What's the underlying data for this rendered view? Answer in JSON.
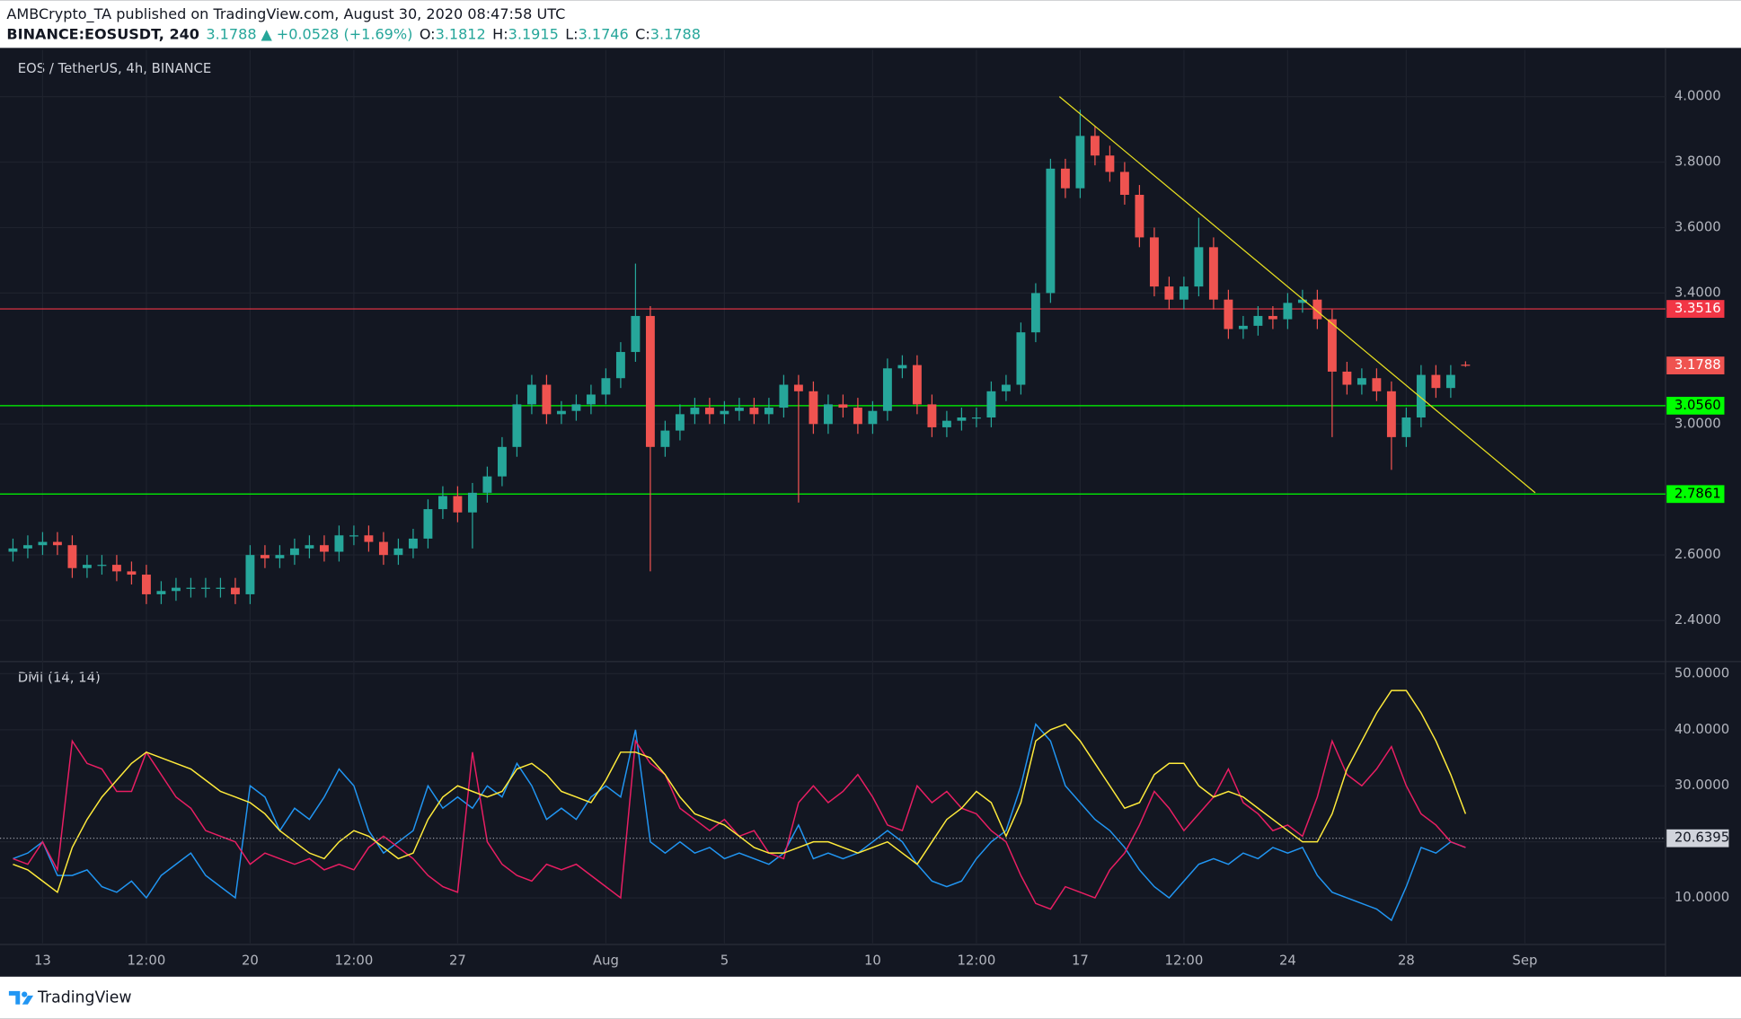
{
  "header": {
    "publisher": "AMBCrypto_TA published on TradingView.com, August 30, 2020 08:47:58 UTC",
    "symbol": "BINANCE:EOSUSDT, 240",
    "change": "+0.0528 (+1.69%)",
    "ohlc_labels": [
      "O:",
      "H:",
      "L:",
      "C:"
    ]
  },
  "footer": {
    "brand": "TradingView"
  },
  "chart_data": [
    {
      "type": "candlestick",
      "title": "EOS / TetherUS, 4h, BINANCE",
      "categories": [
        null,
        null,
        "13",
        null,
        null,
        null,
        null,
        null,
        null,
        "12:00",
        null,
        null,
        null,
        null,
        null,
        null,
        "20",
        null,
        null,
        null,
        null,
        null,
        null,
        "12:00",
        null,
        null,
        null,
        null,
        null,
        null,
        "27",
        null,
        null,
        null,
        null,
        null,
        null,
        null,
        null,
        null,
        "Aug",
        null,
        null,
        null,
        null,
        null,
        null,
        null,
        "5",
        null,
        null,
        null,
        null,
        null,
        null,
        null,
        null,
        null,
        "10",
        null,
        null,
        null,
        null,
        null,
        null,
        "12:00",
        null,
        null,
        null,
        null,
        null,
        null,
        "17",
        null,
        null,
        null,
        null,
        null,
        null,
        "12:00",
        null,
        null,
        null,
        null,
        null,
        null,
        "24",
        null,
        null,
        null,
        null,
        null,
        null,
        null,
        "28",
        null,
        null,
        null,
        null,
        null,
        null,
        null,
        "Sep"
      ],
      "open": [
        2.61,
        2.62,
        2.63,
        2.64,
        2.63,
        2.56,
        2.57,
        2.57,
        2.55,
        2.54,
        2.48,
        2.49,
        2.5,
        2.5,
        2.5,
        2.5,
        2.48,
        2.6,
        2.59,
        2.6,
        2.62,
        2.63,
        2.61,
        2.66,
        2.66,
        2.64,
        2.6,
        2.62,
        2.65,
        2.74,
        2.78,
        2.73,
        2.79,
        2.84,
        2.93,
        3.06,
        3.12,
        3.03,
        3.04,
        3.06,
        3.09,
        3.14,
        3.22,
        3.33,
        2.93,
        2.98,
        3.03,
        3.05,
        3.03,
        3.04,
        3.05,
        3.03,
        3.05,
        3.12,
        3.1,
        3.0,
        3.06,
        3.05,
        3.0,
        3.04,
        3.17,
        3.18,
        3.06,
        2.99,
        3.01,
        3.02,
        3.02,
        3.1,
        3.12,
        3.28,
        3.4,
        3.78,
        3.72,
        3.88,
        3.82,
        3.77,
        3.7,
        3.57,
        3.42,
        3.38,
        3.42,
        3.54,
        3.38,
        3.29,
        3.3,
        3.33,
        3.32,
        3.37,
        3.38,
        3.32,
        3.16,
        3.12,
        3.14,
        3.1,
        2.96,
        3.02,
        3.15,
        3.11,
        3.1812,
        null,
        null,
        null,
        null
      ],
      "high": [
        2.65,
        2.66,
        2.67,
        2.67,
        2.66,
        2.6,
        2.6,
        2.6,
        2.58,
        2.57,
        2.52,
        2.53,
        2.53,
        2.53,
        2.53,
        2.53,
        2.63,
        2.63,
        2.63,
        2.65,
        2.66,
        2.66,
        2.69,
        2.69,
        2.69,
        2.67,
        2.65,
        2.68,
        2.77,
        2.81,
        2.81,
        2.82,
        2.87,
        2.96,
        3.09,
        3.15,
        3.15,
        3.07,
        3.09,
        3.12,
        3.17,
        3.25,
        3.49,
        3.36,
        3.01,
        3.06,
        3.08,
        3.08,
        3.07,
        3.08,
        3.08,
        3.08,
        3.15,
        3.15,
        3.13,
        3.09,
        3.09,
        3.08,
        3.07,
        3.2,
        3.21,
        3.21,
        3.09,
        3.04,
        3.05,
        3.05,
        3.13,
        3.15,
        3.31,
        3.43,
        3.81,
        3.81,
        3.96,
        3.91,
        3.85,
        3.8,
        3.73,
        3.6,
        3.45,
        3.45,
        3.63,
        3.57,
        3.41,
        3.33,
        3.36,
        3.36,
        3.4,
        3.41,
        3.41,
        3.35,
        3.19,
        3.17,
        3.17,
        3.13,
        3.05,
        3.18,
        3.18,
        3.18,
        3.1915,
        null,
        null,
        null,
        null
      ],
      "low": [
        2.58,
        2.59,
        2.6,
        2.6,
        2.53,
        2.53,
        2.54,
        2.52,
        2.51,
        2.45,
        2.45,
        2.46,
        2.47,
        2.47,
        2.47,
        2.45,
        2.45,
        2.56,
        2.56,
        2.57,
        2.59,
        2.58,
        2.58,
        2.63,
        2.61,
        2.57,
        2.57,
        2.59,
        2.62,
        2.71,
        2.7,
        2.62,
        2.76,
        2.81,
        2.9,
        3.03,
        3.0,
        3.0,
        3.01,
        3.03,
        3.06,
        3.11,
        3.19,
        2.55,
        2.9,
        2.95,
        3.0,
        3.0,
        3.0,
        3.01,
        3.0,
        3.0,
        3.02,
        2.76,
        2.97,
        2.97,
        3.02,
        2.97,
        2.97,
        3.01,
        3.14,
        3.03,
        2.96,
        2.96,
        2.98,
        2.99,
        2.99,
        3.07,
        3.09,
        3.25,
        3.37,
        3.69,
        3.69,
        3.79,
        3.74,
        3.67,
        3.54,
        3.39,
        3.35,
        3.35,
        3.39,
        3.35,
        3.26,
        3.26,
        3.27,
        3.29,
        3.29,
        3.34,
        3.29,
        2.96,
        3.09,
        3.09,
        3.07,
        2.86,
        2.93,
        2.99,
        3.08,
        3.08,
        3.1746,
        null,
        null,
        null,
        null
      ],
      "close": [
        2.62,
        2.63,
        2.64,
        2.63,
        2.56,
        2.57,
        2.57,
        2.55,
        2.54,
        2.48,
        2.49,
        2.5,
        2.5,
        2.5,
        2.5,
        2.48,
        2.6,
        2.59,
        2.6,
        2.62,
        2.63,
        2.61,
        2.66,
        2.66,
        2.64,
        2.6,
        2.62,
        2.65,
        2.74,
        2.78,
        2.73,
        2.79,
        2.84,
        2.93,
        3.06,
        3.12,
        3.03,
        3.04,
        3.06,
        3.09,
        3.14,
        3.22,
        3.33,
        2.93,
        2.98,
        3.03,
        3.05,
        3.03,
        3.04,
        3.05,
        3.03,
        3.05,
        3.12,
        3.1,
        3.0,
        3.06,
        3.05,
        3.0,
        3.04,
        3.17,
        3.18,
        3.06,
        2.99,
        3.01,
        3.02,
        3.02,
        3.1,
        3.12,
        3.28,
        3.4,
        3.78,
        3.72,
        3.88,
        3.82,
        3.77,
        3.7,
        3.57,
        3.42,
        3.38,
        3.42,
        3.54,
        3.38,
        3.29,
        3.3,
        3.33,
        3.32,
        3.37,
        3.38,
        3.32,
        3.16,
        3.12,
        3.14,
        3.1,
        2.96,
        3.02,
        3.15,
        3.11,
        3.15,
        3.1788,
        null,
        null,
        null,
        null
      ],
      "up_color": "#26a69a",
      "down_color": "#ef5350",
      "ylim": [
        2.278,
        4.142
      ],
      "yticks": [
        {
          "value": 2.4,
          "label": "2.4000"
        },
        {
          "value": 2.6,
          "label": "2.6000"
        },
        {
          "value": 3.0,
          "label": "3.0000"
        },
        {
          "value": 3.4,
          "label": "3.4000"
        },
        {
          "value": 3.6,
          "label": "3.6000"
        },
        {
          "value": 3.8,
          "label": "3.8000"
        },
        {
          "value": 4.0,
          "label": "4.0000"
        }
      ],
      "grid": true,
      "levels": [
        {
          "value": 3.3516,
          "label": "3.3516",
          "color": "#f23645"
        },
        {
          "value": 3.056,
          "label": "3.0560",
          "color": "#00ff00"
        },
        {
          "value": 2.7861,
          "label": "2.7861",
          "color": "#00ff00"
        }
      ],
      "trendline": {
        "x": [
          70.6,
          102.7
        ],
        "y": [
          4.0,
          2.79
        ],
        "color": "#e8e020"
      }
    },
    {
      "type": "line",
      "title": "DMI (14, 14)",
      "series": [
        {
          "color": "#2196f3",
          "values": [
            17,
            18,
            20,
            14,
            14,
            15,
            12,
            11,
            13,
            10,
            14,
            16,
            18,
            14,
            12,
            10,
            30,
            28,
            22,
            26,
            24,
            28,
            33,
            30,
            22,
            18,
            20,
            22,
            30,
            26,
            28,
            26,
            30,
            28,
            34,
            30,
            24,
            26,
            24,
            28,
            30,
            28,
            40,
            20,
            18,
            20,
            18,
            19,
            17,
            18,
            17,
            16,
            18,
            23,
            17,
            18,
            17,
            18,
            20,
            22,
            20,
            16,
            13,
            12,
            13,
            17,
            20,
            22,
            30,
            41,
            38,
            30,
            27,
            24,
            22,
            19,
            15,
            12,
            10,
            13,
            16,
            17,
            16,
            18,
            17,
            19,
            18,
            19,
            14,
            11,
            10,
            9,
            8,
            6,
            12,
            19,
            18,
            20,
            19,
            null,
            null,
            null,
            null
          ]
        },
        {
          "color": "#e91e63",
          "values": [
            17,
            16,
            20,
            15,
            38,
            34,
            33,
            29,
            29,
            36,
            32,
            28,
            26,
            22,
            21,
            20,
            16,
            18,
            17,
            16,
            17,
            15,
            16,
            15,
            19,
            21,
            19,
            17,
            14,
            12,
            11,
            36,
            20,
            16,
            14,
            13,
            16,
            15,
            16,
            14,
            12,
            10,
            38,
            34,
            32,
            26,
            24,
            22,
            24,
            21,
            22,
            18,
            17,
            27,
            30,
            27,
            29,
            32,
            28,
            23,
            22,
            30,
            27,
            29,
            26,
            25,
            22,
            20,
            14,
            9,
            8,
            12,
            11,
            10,
            15,
            18,
            23,
            29,
            26,
            22,
            25,
            28,
            33,
            27,
            25,
            22,
            23,
            21,
            28,
            38,
            32,
            30,
            33,
            37,
            30,
            25,
            23,
            20,
            19,
            null,
            null,
            null,
            null
          ]
        },
        {
          "color": "#ffeb3b",
          "values": [
            16,
            15,
            13,
            11,
            19,
            24,
            28,
            31,
            34,
            36,
            35,
            34,
            33,
            31,
            29,
            28,
            27,
            25,
            22,
            20,
            18,
            17,
            20,
            22,
            21,
            19,
            17,
            18,
            24,
            28,
            30,
            29,
            28,
            29,
            33,
            34,
            32,
            29,
            28,
            27,
            31,
            36,
            36,
            35,
            32,
            28,
            25,
            24,
            23,
            21,
            19,
            18,
            18,
            19,
            20,
            20,
            19,
            18,
            19,
            20,
            18,
            16,
            20,
            24,
            26,
            29,
            27,
            21,
            27,
            38,
            40,
            41,
            38,
            34,
            30,
            26,
            27,
            32,
            34,
            34,
            30,
            28,
            29,
            28,
            26,
            24,
            22,
            20,
            20,
            25,
            33,
            38,
            43,
            47,
            47,
            43,
            38,
            32,
            25,
            null,
            null,
            null,
            null
          ]
        }
      ],
      "ylim": [
        1.88,
        51.98
      ],
      "yticks": [
        {
          "value": 10,
          "label": "10.0000"
        },
        {
          "value": 20,
          "label": "20.0000"
        },
        {
          "value": 30,
          "label": "30.0000"
        },
        {
          "value": 40,
          "label": "40.0000"
        },
        {
          "value": 50,
          "label": "50.0000"
        }
      ],
      "price_line": 20.6395
    }
  ]
}
